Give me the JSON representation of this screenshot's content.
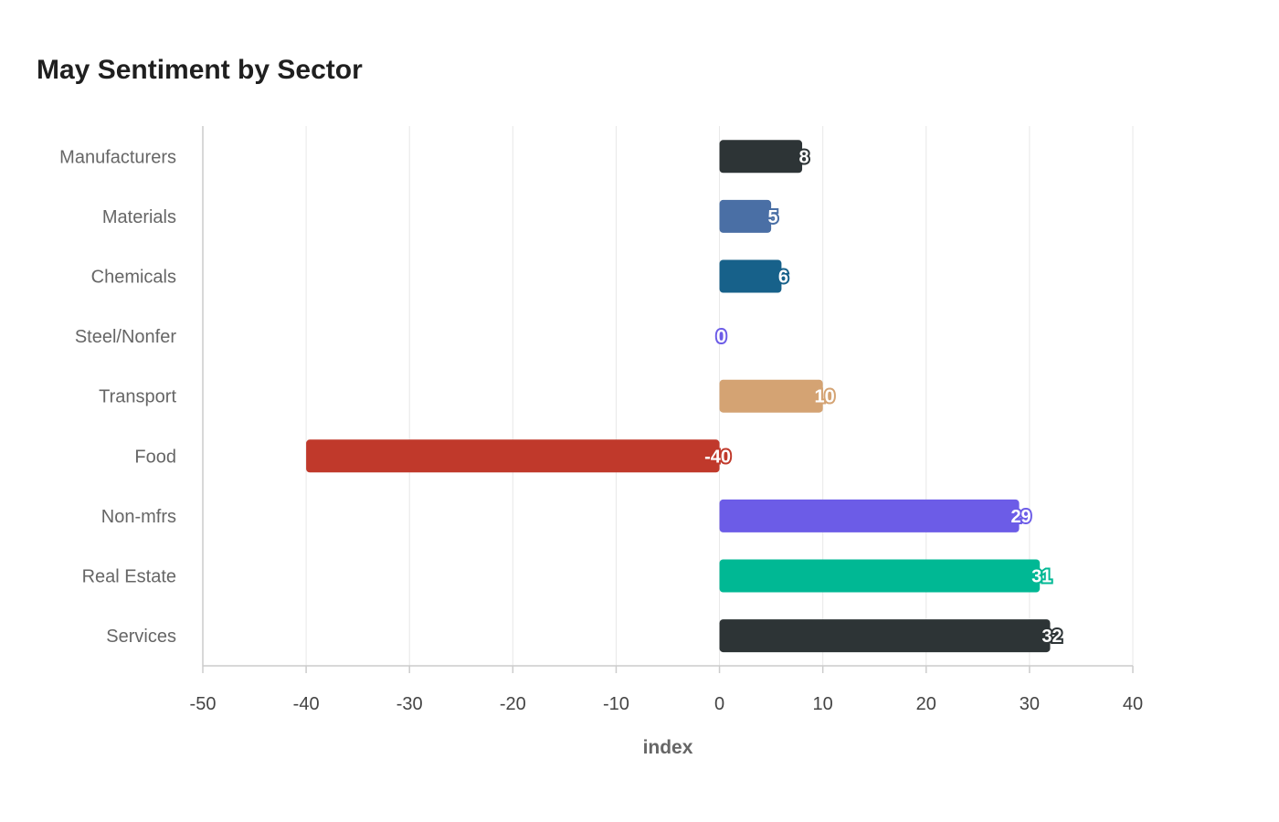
{
  "chart_data": {
    "type": "bar",
    "orientation": "horizontal",
    "title": "May Sentiment by Sector",
    "xlabel": "index",
    "ylabel": "",
    "xlim": [
      -50,
      40
    ],
    "xticks": [
      -50,
      -40,
      -30,
      -20,
      -10,
      0,
      10,
      20,
      30,
      40
    ],
    "grid": true,
    "categories": [
      "Manufacturers",
      "Materials",
      "Chemicals",
      "Steel/Nonfer",
      "Transport",
      "Food",
      "Non-mfrs",
      "Real Estate",
      "Services"
    ],
    "values": [
      8,
      5,
      6,
      0,
      10,
      -40,
      29,
      31,
      32
    ],
    "colors": [
      "#2d3436",
      "#4a6fa5",
      "#17618a",
      "#6c5ce7",
      "#d4a373",
      "#c0392b",
      "#6c5ce7",
      "#00b894",
      "#2d3436"
    ]
  }
}
